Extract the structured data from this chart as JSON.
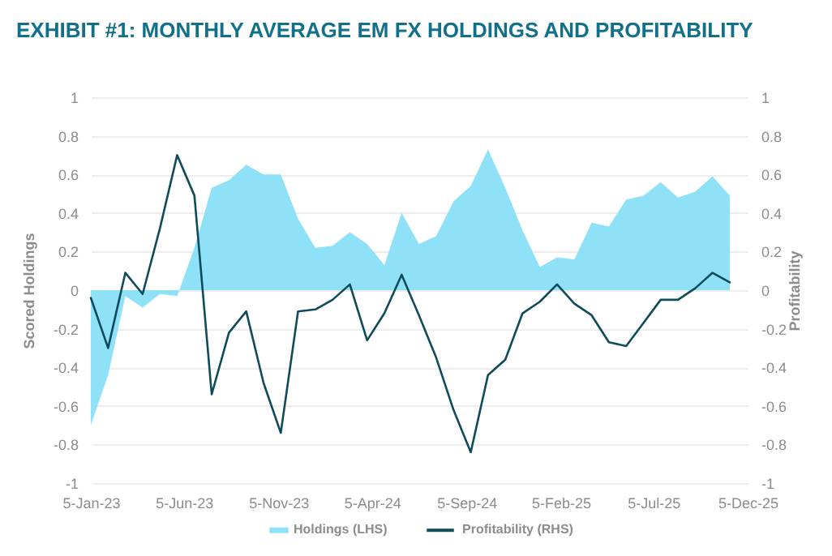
{
  "chart_data": {
    "type": "area",
    "title": "EXHIBIT #1: MONTHLY AVERAGE EM FX HOLDINGS AND PROFITABILITY",
    "ylabel": "Scored Holdings",
    "y2label": "Profitability",
    "x": [
      "2023-01-05",
      "2023-02-02",
      "2023-03-02",
      "2023-03-30",
      "2023-04-27",
      "2023-05-25",
      "2023-06-22",
      "2023-07-20",
      "2023-08-17",
      "2023-09-14",
      "2023-10-12",
      "2023-11-09",
      "2023-12-07",
      "2024-01-04",
      "2024-02-01",
      "2024-02-29",
      "2024-03-28",
      "2024-04-25",
      "2024-05-23",
      "2024-06-20",
      "2024-07-18",
      "2024-08-15",
      "2024-09-12",
      "2024-10-10",
      "2024-11-07",
      "2024-12-05",
      "2025-01-02",
      "2025-01-30",
      "2025-02-27",
      "2025-03-27",
      "2025-04-24",
      "2025-05-22",
      "2025-06-19",
      "2025-07-17",
      "2025-08-14",
      "2025-09-11",
      "2025-10-09",
      "2025-11-06"
    ],
    "xlim": [
      "2023-01-05",
      "2025-12-05"
    ],
    "xticks": [
      {
        "value": "2023-01-05",
        "label": "5-Jan-23"
      },
      {
        "value": "2023-06-05",
        "label": "5-Jun-23"
      },
      {
        "value": "2023-11-05",
        "label": "5-Nov-23"
      },
      {
        "value": "2024-04-05",
        "label": "5-Apr-24"
      },
      {
        "value": "2024-09-05",
        "label": "5-Sep-24"
      },
      {
        "value": "2025-02-05",
        "label": "5-Feb-25"
      },
      {
        "value": "2025-07-05",
        "label": "5-Jul-25"
      },
      {
        "value": "2025-12-05",
        "label": "5-Dec-25"
      }
    ],
    "ylim": [
      -1,
      1
    ],
    "yticks": [
      -1,
      -0.8,
      -0.6,
      -0.4,
      -0.2,
      0,
      0.2,
      0.4,
      0.6,
      0.8,
      1
    ],
    "y2lim": [
      -1,
      1
    ],
    "y2ticks": [
      -1,
      -0.8,
      -0.6,
      -0.4,
      -0.2,
      0,
      0.2,
      0.4,
      0.6,
      0.8,
      1
    ],
    "grid": "y",
    "legend": "bottom",
    "series": [
      {
        "name": "Holdings (LHS)",
        "color": "#8fe1f7",
        "values": [
          -0.7,
          -0.44,
          -0.03,
          -0.09,
          -0.02,
          -0.03,
          0.22,
          0.53,
          0.57,
          0.65,
          0.6,
          0.6,
          0.37,
          0.22,
          0.23,
          0.3,
          0.24,
          0.13,
          0.4,
          0.24,
          0.28,
          0.46,
          0.54,
          0.73,
          0.53,
          0.31,
          0.12,
          0.17,
          0.16,
          0.35,
          0.33,
          0.47,
          0.49,
          0.56,
          0.48,
          0.51,
          0.59,
          0.49
        ]
      },
      {
        "name": "Profitability (RHS)",
        "type": "line",
        "axis": "y2",
        "color": "#0f4b5a",
        "values": [
          -0.04,
          -0.3,
          0.09,
          -0.02,
          0.32,
          0.7,
          0.49,
          -0.54,
          -0.22,
          -0.11,
          -0.48,
          -0.74,
          -0.11,
          -0.1,
          -0.05,
          0.03,
          -0.26,
          -0.12,
          0.08,
          -0.13,
          -0.35,
          -0.62,
          -0.84,
          -0.44,
          -0.36,
          -0.12,
          -0.06,
          0.03,
          -0.07,
          -0.13,
          -0.27,
          -0.29,
          -0.17,
          -0.05,
          -0.05,
          0.01,
          0.09,
          0.04
        ]
      }
    ]
  }
}
